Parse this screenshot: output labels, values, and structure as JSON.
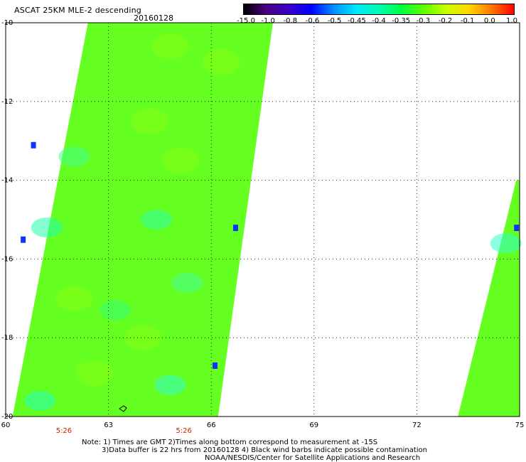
{
  "header": {
    "title": "ASCAT 25KM MLE-2 descending",
    "date": "20160128"
  },
  "colorbar": {
    "labels": [
      "-15.0",
      "-1.0",
      "-0.8",
      "-0.6",
      "-0.5",
      "-0.45",
      "-0.4",
      "-0.35",
      "-0.3",
      "-0.2",
      "-0.1",
      "0.0",
      "1.0"
    ],
    "colors": [
      "#000000",
      "#4a0080",
      "#3a00c8",
      "#0000ff",
      "#0090ff",
      "#00e8ff",
      "#00ffb0",
      "#00ff40",
      "#60ff00",
      "#c8ff00",
      "#ffd800",
      "#ff7800",
      "#ff0000"
    ]
  },
  "map": {
    "lon_range": [
      60,
      75
    ],
    "lat_range": [
      -20,
      -10
    ],
    "lon_ticks": [
      "60",
      "63",
      "66",
      "69",
      "72",
      "75"
    ],
    "lat_ticks": [
      "-10",
      "-12",
      "-14",
      "-16",
      "-18",
      "-20"
    ],
    "time_labels": [
      {
        "lon": 61.7,
        "text": "5:26"
      },
      {
        "lon": 65.2,
        "text": "5:26"
      }
    ],
    "swaths": [
      {
        "name": "west-swath",
        "color": "#66ff22",
        "corners": [
          [
            62.4,
            -10
          ],
          [
            67.8,
            -10
          ],
          [
            66.2,
            -20
          ],
          [
            60.2,
            -20
          ]
        ]
      },
      {
        "name": "east-swath",
        "color": "#66ff22",
        "corners": [
          [
            74.9,
            -14
          ],
          [
            75,
            -14
          ],
          [
            75,
            -20
          ],
          [
            73.2,
            -20
          ]
        ]
      }
    ]
  },
  "note": {
    "line1": "Note: 1) Times are GMT 2)Times along bottom correspond to measurement at -15S",
    "line2": "3)Data buffer is 22 hrs from 20160128 4) Black wind barbs indicate possible contamination",
    "line3": "NOAA/NESDIS/Center for Satellite Applications and Research"
  }
}
